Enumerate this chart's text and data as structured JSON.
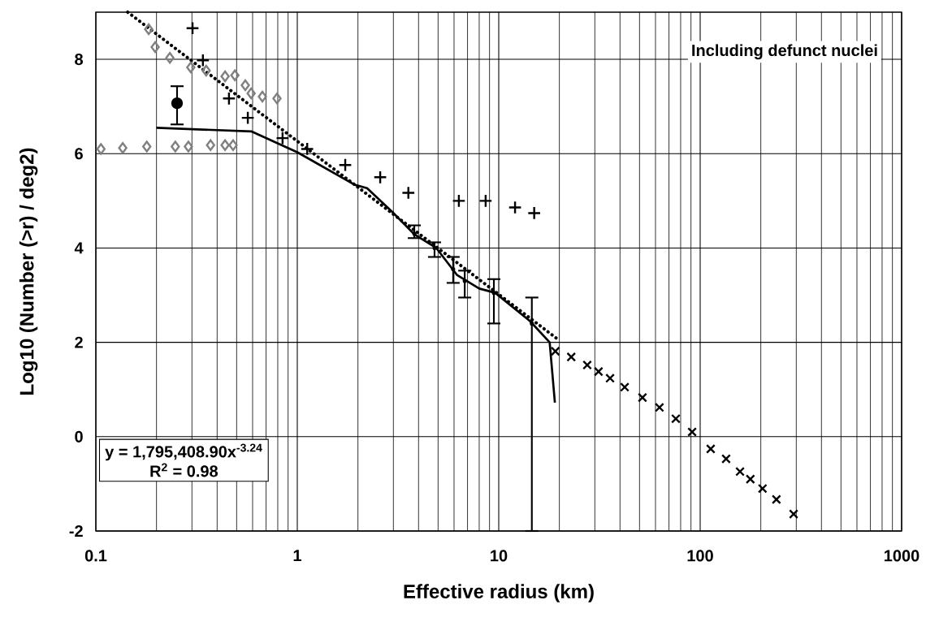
{
  "chart_data": {
    "type": "scatter",
    "xlabel": "Effective radius (km)",
    "ylabel": "Log10 (Number (>r) / deg2)",
    "log": "x",
    "grid": true,
    "xlim": [
      0.1,
      1000
    ],
    "xticks": [
      0.1,
      1,
      10,
      100,
      1000
    ],
    "ylim": [
      -2,
      9
    ],
    "yticks": [
      -2,
      0,
      2,
      4,
      6,
      8
    ],
    "annotations": [
      "Including defunct nuclei",
      "y = 1,795,408.90x$^{-3.24}$",
      "R$^{2}$ = 0.98"
    ],
    "series": [
      {
        "type": "scatter",
        "marker": "diamond",
        "color": "#808080",
        "x": [
          0.183,
          0.197,
          0.233,
          0.296,
          0.353,
          0.438,
          0.49,
          0.552,
          0.59,
          0.671,
          0.793,
          0.106,
          0.136,
          0.179,
          0.248,
          0.288,
          0.371,
          0.438,
          0.48
        ],
        "values": [
          8.64,
          8.26,
          8.03,
          7.83,
          7.76,
          7.64,
          7.66,
          7.45,
          7.28,
          7.21,
          7.17,
          6.1,
          6.12,
          6.15,
          6.15,
          6.15,
          6.18,
          6.18,
          6.18
        ]
      },
      {
        "type": "scatter",
        "marker": "plus",
        "color": "#000000",
        "x": [
          0.302,
          0.34,
          0.458,
          0.568,
          0.845,
          1.12,
          1.73,
          2.58,
          3.56,
          6.34,
          8.61,
          12.05,
          15.0
        ],
        "values": [
          8.66,
          7.98,
          7.17,
          6.76,
          6.33,
          6.1,
          5.76,
          5.5,
          5.17,
          5.0,
          5.0,
          4.86,
          4.74
        ]
      },
      {
        "type": "scatter",
        "marker": "circle",
        "color": "#000000",
        "x": [
          0.253
        ],
        "values": [
          7.07
        ],
        "errors": [
          [
            6.62,
            7.43
          ]
        ]
      },
      {
        "type": "scatter",
        "marker": "none",
        "color": "#000000",
        "x": [
          3.81,
          4.8,
          5.94,
          6.78,
          9.46,
          14.6
        ],
        "values": [
          4.3,
          4.0,
          3.55,
          3.3,
          3.05,
          2.4
        ],
        "errors": [
          [
            4.21,
            4.48
          ],
          [
            3.81,
            4.12
          ],
          [
            3.26,
            3.81
          ],
          [
            2.95,
            3.52
          ],
          [
            2.4,
            3.34
          ],
          [
            -2,
            2.95
          ]
        ]
      },
      {
        "type": "line",
        "line_style": "solid",
        "color": "#000000",
        "x": [
          0.2,
          0.594,
          1.0,
          1.93,
          2.22,
          2.97,
          3.81,
          4.9,
          6.2,
          8.0,
          9.6,
          14.3,
          17.9,
          19.0
        ],
        "values": [
          6.55,
          6.47,
          6.03,
          5.34,
          5.27,
          4.76,
          4.29,
          4.0,
          3.43,
          3.14,
          3.05,
          2.45,
          2.0,
          0.72
        ]
      },
      {
        "type": "line",
        "line_style": "dotted",
        "color": "#000000",
        "x": [
          0.144,
          20
        ],
        "values": [
          9.0,
          2.04
        ]
      },
      {
        "type": "scatter",
        "marker": "cross",
        "color": "#000000",
        "x": [
          19.1,
          22.9,
          27.5,
          31.3,
          35.7,
          42.2,
          51.7,
          62.8,
          75.7,
          91.2,
          112.8,
          134.5,
          157.7,
          177.5,
          204,
          239,
          291
        ],
        "values": [
          1.81,
          1.69,
          1.52,
          1.38,
          1.24,
          1.05,
          0.83,
          0.62,
          0.38,
          0.1,
          -0.26,
          -0.47,
          -0.74,
          -0.9,
          -1.1,
          -1.33,
          -1.64
        ]
      }
    ]
  }
}
